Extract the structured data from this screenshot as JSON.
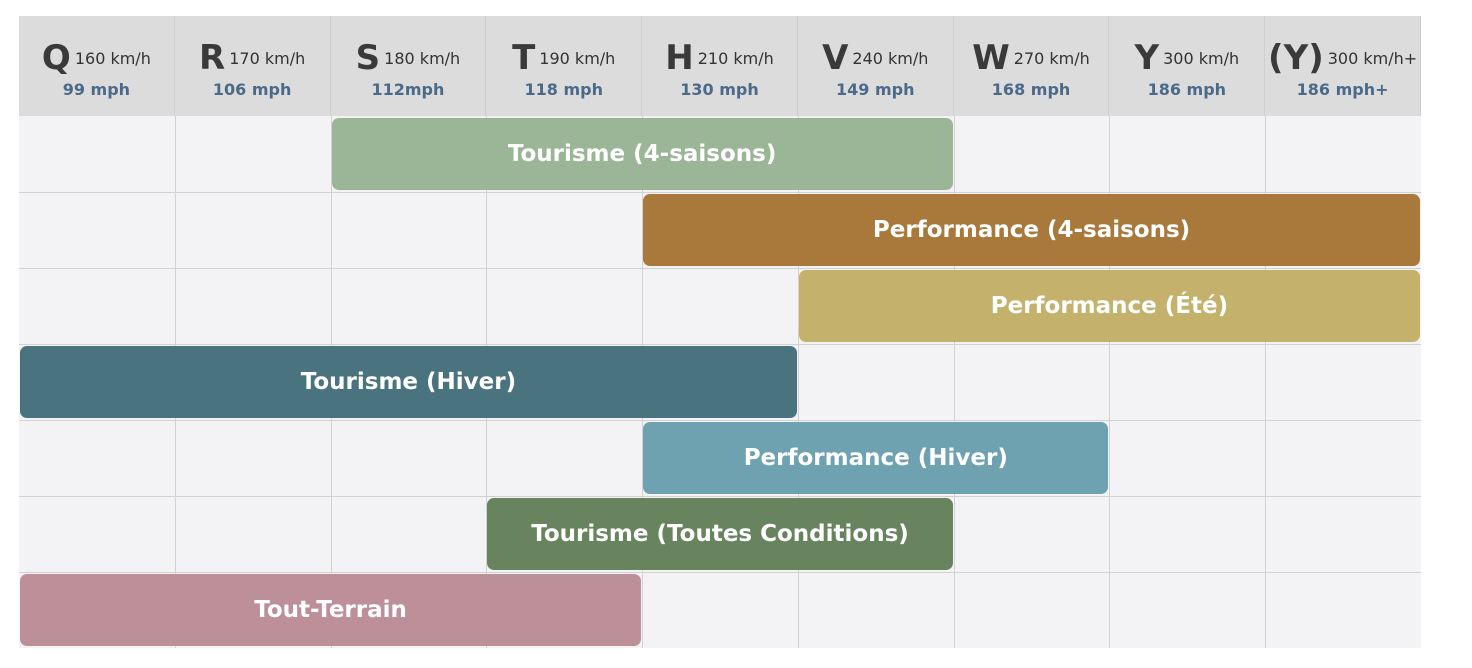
{
  "columns": [
    {
      "letter": "Q",
      "kmh": "160 km/h",
      "mph": "99 mph"
    },
    {
      "letter": "R",
      "kmh": "170 km/h",
      "mph": "106 mph"
    },
    {
      "letter": "S",
      "kmh": "180 km/h",
      "mph": "112mph"
    },
    {
      "letter": "T",
      "kmh": "190 km/h",
      "mph": "118 mph"
    },
    {
      "letter": "H",
      "kmh": "210 km/h",
      "mph": "130 mph"
    },
    {
      "letter": "V",
      "kmh": "240 km/h",
      "mph": "149 mph"
    },
    {
      "letter": "W",
      "kmh": "270 km/h",
      "mph": "168 mph"
    },
    {
      "letter": "Y",
      "kmh": "300 km/h",
      "mph": "186 mph"
    },
    {
      "letter": "(Y)",
      "kmh": "300 km/h+",
      "mph": "186 mph+"
    }
  ],
  "bars": [
    {
      "label": "Tourisme (4-saisons)",
      "from": "S",
      "to": "V",
      "color": "#9bb597"
    },
    {
      "label": "Performance (4-saisons)",
      "from": "H",
      "to": "(Y)",
      "color": "#a8793b"
    },
    {
      "label": "Performance (Été)",
      "from": "V",
      "to": "(Y)",
      "color": "#c4b26c"
    },
    {
      "label": "Tourisme (Hiver)",
      "from": "Q",
      "to": "H",
      "color": "#4a7380"
    },
    {
      "label": "Performance (Hiver)",
      "from": "H",
      "to": "W",
      "color": "#6fa2b1"
    },
    {
      "label": "Tourisme (Toutes Conditions)",
      "from": "T",
      "to": "V",
      "color": "#67845e"
    },
    {
      "label": "Tout-Terrain",
      "from": "Q",
      "to": "T",
      "color": "#bc8f99"
    }
  ]
}
